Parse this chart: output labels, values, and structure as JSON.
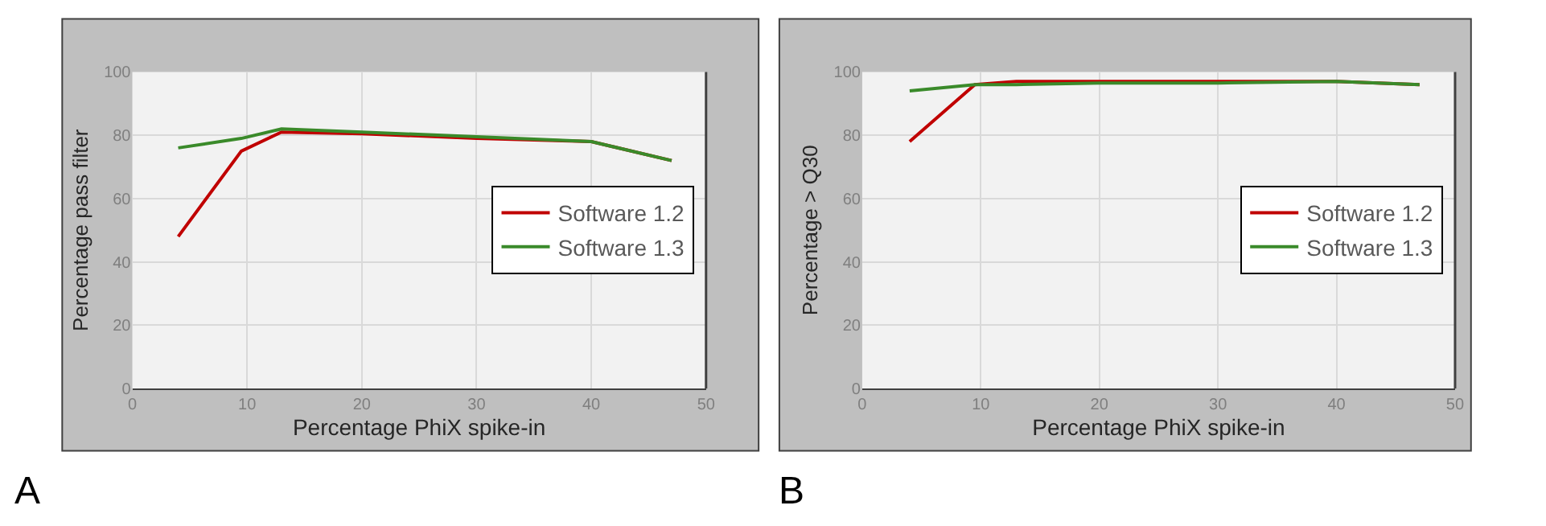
{
  "chart_data": [
    {
      "type": "line",
      "xlabel": "Percentage PhiX spike-in",
      "ylabel": "Percentage pass filter",
      "xlim": [
        0,
        50
      ],
      "xticks": [
        0,
        10,
        20,
        30,
        40,
        50
      ],
      "ylim": [
        0,
        100
      ],
      "yticks": [
        0,
        20,
        40,
        60,
        80,
        100
      ],
      "grid": true,
      "legend": "right",
      "marker": "none",
      "line_style": "solid",
      "annotations": [
        "A"
      ],
      "x": [
        4,
        9.5,
        13,
        20,
        30,
        40,
        47
      ],
      "series": [
        {
          "name": "Software 1.2",
          "color": "#c00000",
          "values": [
            48,
            75,
            81,
            80.5,
            79,
            78,
            72
          ]
        },
        {
          "name": "Software 1.3",
          "color": "#3a8a2a",
          "values": [
            76,
            79,
            82,
            81,
            79.5,
            78,
            72
          ]
        }
      ]
    },
    {
      "type": "line",
      "xlabel": "Percentage PhiX spike-in",
      "ylabel": "Percentage > Q30",
      "xlim": [
        0,
        50
      ],
      "xticks": [
        0,
        10,
        20,
        30,
        40,
        50
      ],
      "ylim": [
        0,
        100
      ],
      "yticks": [
        0,
        20,
        40,
        60,
        80,
        100
      ],
      "grid": true,
      "legend": "right",
      "marker": "none",
      "line_style": "solid",
      "annotations": [
        "B"
      ],
      "x": [
        4,
        9.5,
        13,
        20,
        30,
        40,
        47
      ],
      "series": [
        {
          "name": "Software 1.2",
          "color": "#c00000",
          "values": [
            78,
            96,
            97,
            97,
            97,
            97,
            96
          ]
        },
        {
          "name": "Software 1.3",
          "color": "#3a8a2a",
          "values": [
            94,
            96,
            96,
            96.5,
            96.5,
            97,
            96
          ]
        }
      ]
    }
  ]
}
